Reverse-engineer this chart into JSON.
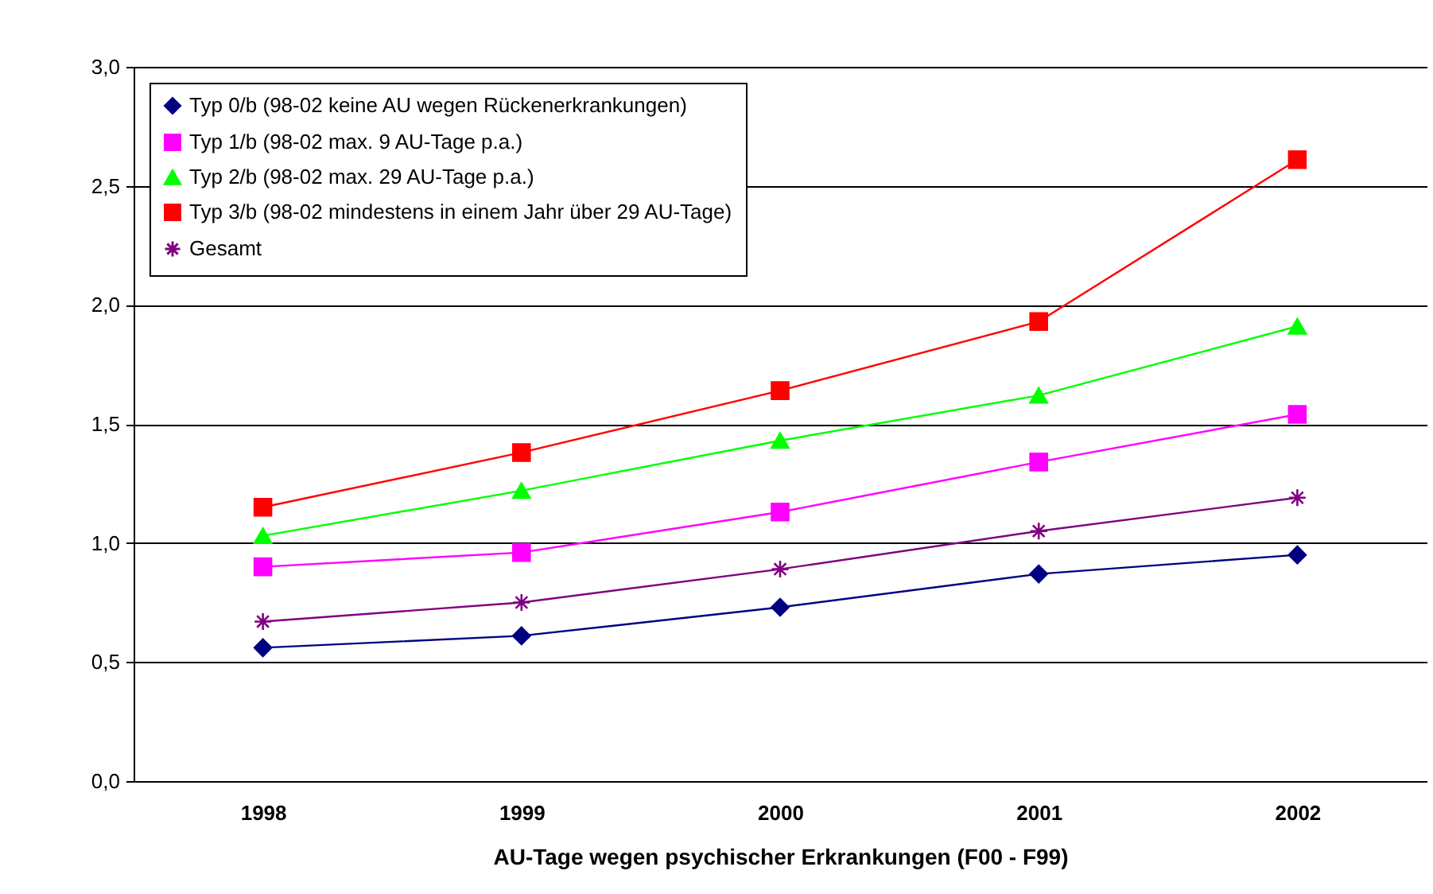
{
  "chart_data": {
    "type": "line",
    "xlabel": "AU-Tage wegen psychischer Erkrankungen (F00 - F99)",
    "categories": [
      "1998",
      "1999",
      "2000",
      "2001",
      "2002"
    ],
    "series": [
      {
        "name": "Typ 0/b (98-02 keine AU wegen Rückenerkrankungen)",
        "color": "#000080",
        "marker": "diamond",
        "values": [
          0.56,
          0.61,
          0.73,
          0.87,
          0.95
        ]
      },
      {
        "name": "Typ 1/b (98-02 max. 9 AU-Tage p.a.)",
        "color": "#ff00ff",
        "marker": "square",
        "values": [
          0.9,
          0.96,
          1.13,
          1.34,
          1.54
        ]
      },
      {
        "name": "Typ 2/b (98-02 max. 29 AU-Tage p.a.)",
        "color": "#00ff00",
        "marker": "triangle",
        "values": [
          1.03,
          1.22,
          1.43,
          1.62,
          1.91
        ]
      },
      {
        "name": "Typ 3/b (98-02 mindestens in einem Jahr über 29 AU-Tage)",
        "color": "#ff0000",
        "marker": "square",
        "values": [
          1.15,
          1.38,
          1.64,
          1.93,
          2.61
        ]
      },
      {
        "name": "Gesamt",
        "color": "#800080",
        "marker": "cross",
        "values": [
          0.67,
          0.75,
          0.89,
          1.05,
          1.19
        ]
      }
    ],
    "ylim": [
      0,
      3
    ],
    "yticks": [
      {
        "value": 0,
        "label": "0,0"
      },
      {
        "value": 0.5,
        "label": "0,5"
      },
      {
        "value": 1,
        "label": "1,0"
      },
      {
        "value": 1.5,
        "label": "1,5"
      },
      {
        "value": 2,
        "label": "2,0"
      },
      {
        "value": 2.5,
        "label": "2,5"
      },
      {
        "value": 3,
        "label": "3,0"
      }
    ],
    "grid": "y",
    "legend": "top left"
  }
}
